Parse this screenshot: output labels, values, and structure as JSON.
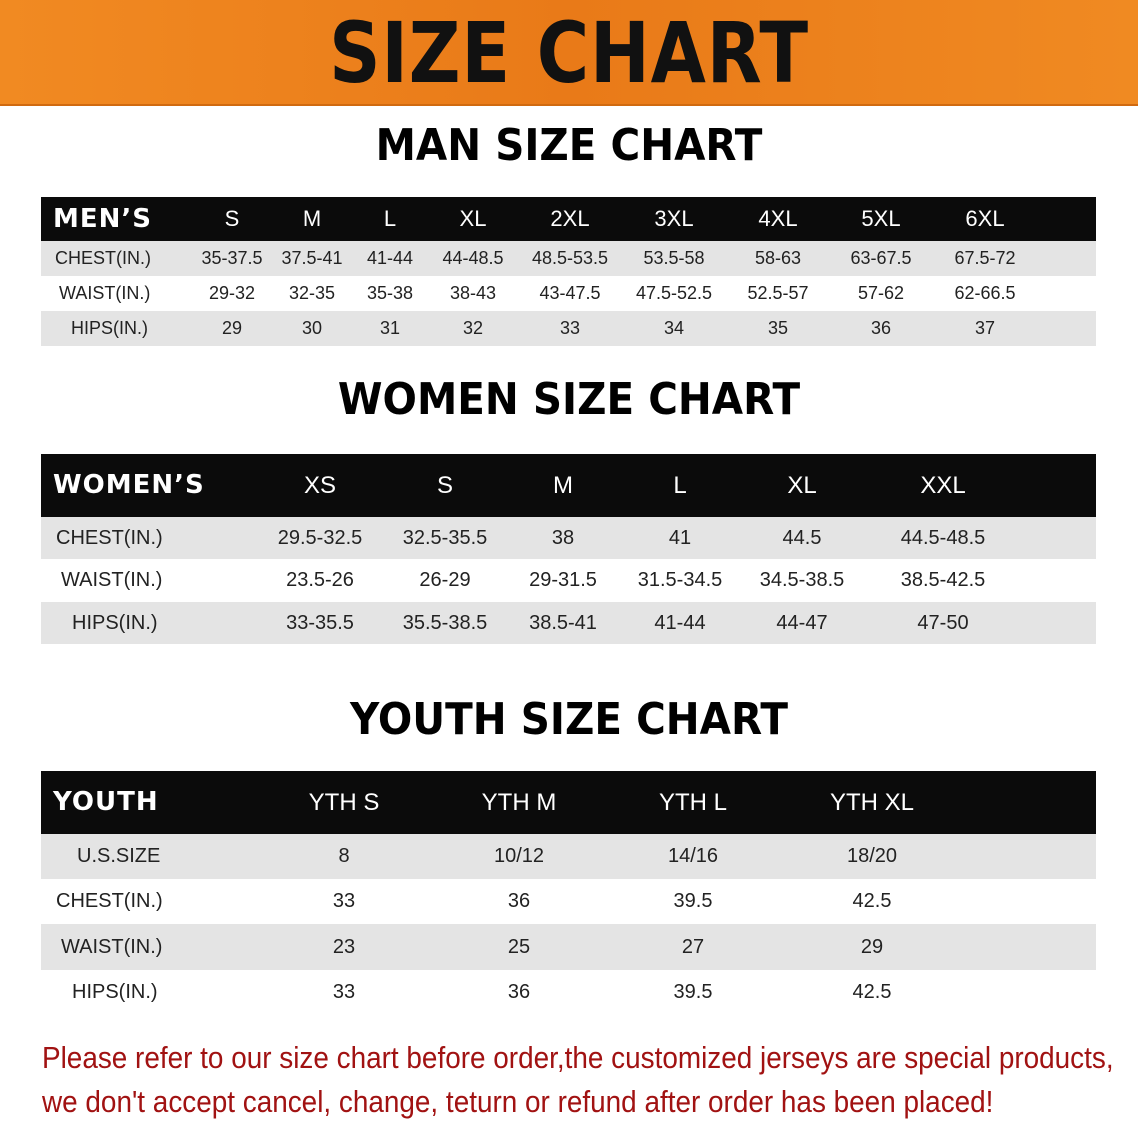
{
  "banner_title": "SIZE CHART",
  "men": {
    "title": "MAN SIZE CHART",
    "header_label": "MEN’S",
    "sizes": [
      "S",
      "M",
      "L",
      "XL",
      "2XL",
      "3XL",
      "4XL",
      "5XL",
      "6XL"
    ],
    "rows": [
      {
        "label": "CHEST(IN.)",
        "values": [
          "35-37.5",
          "37.5-41",
          "41-44",
          "44-48.5",
          "48.5-53.5",
          "53.5-58",
          "58-63",
          "63-67.5",
          "67.5-72"
        ]
      },
      {
        "label": "WAIST(IN.)",
        "values": [
          "29-32",
          "32-35",
          "35-38",
          "38-43",
          "43-47.5",
          "47.5-52.5",
          "52.5-57",
          "57-62",
          "62-66.5"
        ]
      },
      {
        "label": "HIPS(IN.)",
        "values": [
          "29",
          "30",
          "31",
          "32",
          "33",
          "34",
          "35",
          "36",
          "37"
        ]
      }
    ]
  },
  "women": {
    "title": "WOMEN SIZE CHART",
    "header_label": "WOMEN’S",
    "sizes": [
      "XS",
      "S",
      "M",
      "L",
      "XL",
      "XXL"
    ],
    "rows": [
      {
        "label": "CHEST(IN.)",
        "values": [
          "29.5-32.5",
          "32.5-35.5",
          "38",
          "41",
          "44.5",
          "44.5-48.5"
        ]
      },
      {
        "label": "WAIST(IN.)",
        "values": [
          "23.5-26",
          "26-29",
          "29-31.5",
          "31.5-34.5",
          "34.5-38.5",
          "38.5-42.5"
        ]
      },
      {
        "label": "HIPS(IN.)",
        "values": [
          "33-35.5",
          "35.5-38.5",
          "38.5-41",
          "41-44",
          "44-47",
          "47-50"
        ]
      }
    ]
  },
  "youth": {
    "title": "YOUTH SIZE CHART",
    "header_label": "YOUTH",
    "sizes": [
      "YTH S",
      "YTH M",
      "YTH L",
      "YTH XL"
    ],
    "rows": [
      {
        "label": "U.S.SIZE",
        "values": [
          "8",
          "10/12",
          "14/16",
          "18/20"
        ]
      },
      {
        "label": "CHEST(IN.)",
        "values": [
          "33",
          "36",
          "39.5",
          "42.5"
        ]
      },
      {
        "label": "WAIST(IN.)",
        "values": [
          "23",
          "25",
          "27",
          "29"
        ]
      },
      {
        "label": "HIPS(IN.)",
        "values": [
          "33",
          "36",
          "39.5",
          "42.5"
        ]
      }
    ]
  },
  "notice": {
    "line1": "Please refer to our size chart before order,the customized jerseys are special products,",
    "line2": "we don't accept cancel, change, teturn or refund after order has been placed!"
  },
  "colors": {
    "banner": "#e97a18",
    "table_header": "#0b0b0b",
    "row_alt": "#e4e4e4",
    "notice": "#a11212"
  }
}
